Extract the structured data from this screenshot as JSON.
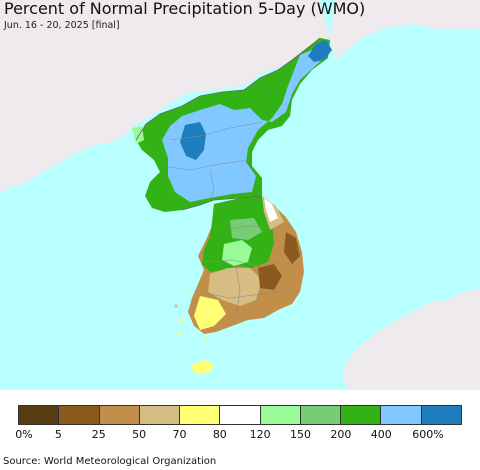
{
  "title": "Percent of Normal Precipitation 5-Day (WMO)",
  "subtitle": "Jun. 16 - 20, 2025 [final]",
  "colors": {
    "water": "#b8ffff",
    "foreign_land": "#eeeaee",
    "country_border": "#666666",
    "province_border": "#8a8a8a"
  },
  "legend": {
    "bins": [
      {
        "color": "#563c10"
      },
      {
        "color": "#8b5a1f"
      },
      {
        "color": "#c28f4a"
      },
      {
        "color": "#d5bd84"
      },
      {
        "color": "#ffff74"
      },
      {
        "color": "#ffffff"
      },
      {
        "color": "#98fb98"
      },
      {
        "color": "#76cd76"
      },
      {
        "color": "#33b215"
      },
      {
        "color": "#80c8ff"
      },
      {
        "color": "#1e7dbd"
      }
    ],
    "ticks": [
      "0%",
      "5",
      "25",
      "50",
      "70",
      "80",
      "120",
      "150",
      "200",
      "400",
      "600%"
    ]
  },
  "source": "Source: World Meteorological Organization"
}
